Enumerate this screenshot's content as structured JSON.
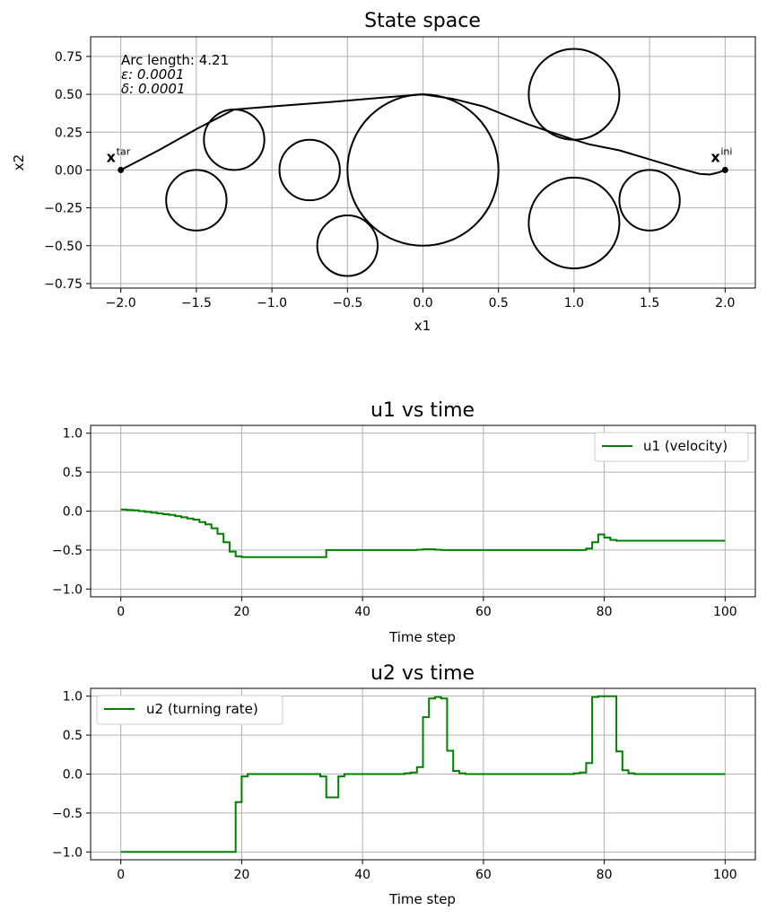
{
  "chart_data": [
    {
      "type": "line",
      "title": "State space",
      "xlabel": "x1",
      "ylabel": "x2",
      "xlim": [
        -2.2,
        2.2
      ],
      "ylim": [
        -0.78,
        0.88
      ],
      "xticks": [
        -2.0,
        -1.5,
        -1.0,
        -0.5,
        0.0,
        0.5,
        1.0,
        1.5,
        2.0
      ],
      "xtick_labels": [
        "−2.0",
        "−1.5",
        "−1.0",
        "−0.5",
        "0.0",
        "0.5",
        "1.0",
        "1.5",
        "2.0"
      ],
      "yticks": [
        -0.75,
        -0.5,
        -0.25,
        0.0,
        0.25,
        0.5,
        0.75
      ],
      "ytick_labels": [
        "−0.75",
        "−0.50",
        "−0.25",
        "0.00",
        "0.25",
        "0.50",
        "0.75"
      ],
      "grid": true,
      "annotation_lines": [
        "Arc length: 4.21",
        "ε: 0.0001",
        "δ: 0.0001"
      ],
      "obstacles": [
        {
          "x": -1.5,
          "y": -0.2,
          "r": 0.2
        },
        {
          "x": -1.25,
          "y": 0.2,
          "r": 0.2
        },
        {
          "x": -0.75,
          "y": 0.0,
          "r": 0.2
        },
        {
          "x": -0.5,
          "y": -0.5,
          "r": 0.2
        },
        {
          "x": 0.0,
          "y": 0.0,
          "r": 0.5
        },
        {
          "x": 1.0,
          "y": 0.5,
          "r": 0.3
        },
        {
          "x": 1.0,
          "y": -0.35,
          "r": 0.3
        },
        {
          "x": 1.5,
          "y": -0.2,
          "r": 0.2
        }
      ],
      "trajectory": [
        [
          2.0,
          0.0
        ],
        [
          1.96,
          -0.015
        ],
        [
          1.9,
          -0.03
        ],
        [
          1.83,
          -0.025
        ],
        [
          1.7,
          0.01
        ],
        [
          1.5,
          0.07
        ],
        [
          1.3,
          0.13
        ],
        [
          1.1,
          0.17
        ],
        [
          1.0,
          0.2
        ],
        [
          0.7,
          0.3
        ],
        [
          0.4,
          0.42
        ],
        [
          0.2,
          0.47
        ],
        [
          0.0,
          0.5
        ],
        [
          -0.25,
          0.48
        ],
        [
          -0.6,
          0.45
        ],
        [
          -1.0,
          0.42
        ],
        [
          -1.25,
          0.4
        ],
        [
          -1.5,
          0.27
        ],
        [
          -1.75,
          0.13
        ],
        [
          -2.0,
          0.0
        ]
      ],
      "points": [
        {
          "x": -2.0,
          "y": 0.0,
          "label": "x",
          "sup": "tar"
        },
        {
          "x": 2.0,
          "y": 0.0,
          "label": "x",
          "sup": "ini"
        }
      ],
      "color": "#000000"
    },
    {
      "type": "line",
      "title": "u1 vs time",
      "xlabel": "Time step",
      "ylabel": "",
      "xlim": [
        -5,
        105
      ],
      "ylim": [
        -1.1,
        1.1
      ],
      "xticks": [
        0,
        20,
        40,
        60,
        80,
        100
      ],
      "xtick_labels": [
        "0",
        "20",
        "40",
        "60",
        "80",
        "100"
      ],
      "yticks": [
        -1.0,
        -0.5,
        0.0,
        0.5,
        1.0
      ],
      "ytick_labels": [
        "−1.0",
        "−0.5",
        "0.0",
        "0.5",
        "1.0"
      ],
      "grid": true,
      "legend": "top-right",
      "series": [
        {
          "name": "u1 (velocity)",
          "color": "#008000",
          "step": "post",
          "values": [
            0.02,
            0.015,
            0.01,
            0.0,
            -0.01,
            -0.02,
            -0.03,
            -0.04,
            -0.05,
            -0.065,
            -0.08,
            -0.095,
            -0.11,
            -0.14,
            -0.17,
            -0.22,
            -0.29,
            -0.4,
            -0.52,
            -0.58,
            -0.59,
            -0.59,
            -0.59,
            -0.59,
            -0.59,
            -0.59,
            -0.59,
            -0.59,
            -0.59,
            -0.59,
            -0.59,
            -0.59,
            -0.59,
            -0.59,
            -0.5,
            -0.5,
            -0.5,
            -0.5,
            -0.5,
            -0.5,
            -0.5,
            -0.5,
            -0.5,
            -0.5,
            -0.5,
            -0.5,
            -0.5,
            -0.5,
            -0.5,
            -0.495,
            -0.49,
            -0.49,
            -0.495,
            -0.5,
            -0.5,
            -0.5,
            -0.5,
            -0.5,
            -0.5,
            -0.5,
            -0.5,
            -0.5,
            -0.5,
            -0.5,
            -0.5,
            -0.5,
            -0.5,
            -0.5,
            -0.5,
            -0.5,
            -0.5,
            -0.5,
            -0.5,
            -0.5,
            -0.5,
            -0.5,
            -0.5,
            -0.48,
            -0.4,
            -0.3,
            -0.34,
            -0.37,
            -0.38,
            -0.38,
            -0.38,
            -0.38,
            -0.38,
            -0.38,
            -0.38,
            -0.38,
            -0.38,
            -0.38,
            -0.38,
            -0.38,
            -0.38,
            -0.38,
            -0.38,
            -0.38,
            -0.38,
            -0.38,
            -0.38
          ]
        }
      ]
    },
    {
      "type": "line",
      "title": "u2 vs time",
      "xlabel": "Time step",
      "ylabel": "",
      "xlim": [
        -5,
        105
      ],
      "ylim": [
        -1.1,
        1.1
      ],
      "xticks": [
        0,
        20,
        40,
        60,
        80,
        100
      ],
      "xtick_labels": [
        "0",
        "20",
        "40",
        "60",
        "80",
        "100"
      ],
      "yticks": [
        -1.0,
        -0.5,
        0.0,
        0.5,
        1.0
      ],
      "ytick_labels": [
        "−1.0",
        "−0.5",
        "0.0",
        "0.5",
        "1.0"
      ],
      "grid": true,
      "legend": "top-left",
      "series": [
        {
          "name": "u2 (turning rate)",
          "color": "#008000",
          "step": "post",
          "values": [
            -1,
            -1,
            -1,
            -1,
            -1,
            -1,
            -1,
            -1,
            -1,
            -1,
            -1,
            -1,
            -1,
            -1,
            -1,
            -1,
            -1,
            -1,
            -1,
            -0.36,
            -0.03,
            0,
            0,
            0,
            0,
            0,
            0,
            0,
            0,
            0,
            0,
            0,
            0,
            -0.03,
            -0.3,
            -0.3,
            -0.03,
            0,
            0,
            0,
            0,
            0,
            0,
            0,
            0,
            0,
            0,
            0.01,
            0.02,
            0.09,
            0.73,
            0.97,
            0.99,
            0.97,
            0.3,
            0.04,
            0.01,
            0,
            0,
            0,
            0,
            0,
            0,
            0,
            0,
            0,
            0,
            0,
            0,
            0,
            0,
            0,
            0,
            0,
            0,
            0.01,
            0.02,
            0.14,
            0.99,
            1.0,
            1.0,
            1.0,
            0.29,
            0.05,
            0.01,
            0,
            0,
            0,
            0,
            0,
            0,
            0,
            0,
            0,
            0,
            0,
            0,
            0,
            0,
            0,
            0
          ]
        }
      ]
    }
  ]
}
